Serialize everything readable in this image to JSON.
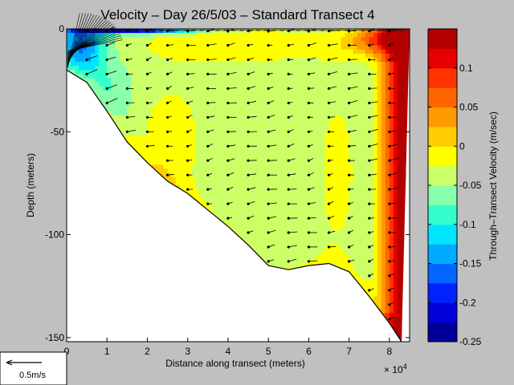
{
  "chart_data": {
    "type": "heatmap",
    "title": "Velocity – Day 26/5/03 – Standard Transect 4",
    "xlabel": "Distance along transect (meters)",
    "x_exponent_label": "× 10",
    "x_exponent_power": "4",
    "ylabel": "Depth (meters)",
    "colorbar_label": "Through–Transect Velocity (m/sec)",
    "xlim": [
      0,
      8.5
    ],
    "ylim": [
      -152,
      0
    ],
    "x_ticks": [
      0,
      1,
      2,
      3,
      4,
      5,
      6,
      7,
      8
    ],
    "x_tick_labels": [
      "0",
      "1",
      "2",
      "3",
      "4",
      "5",
      "6",
      "7",
      "8"
    ],
    "y_ticks": [
      0,
      -50,
      -100,
      -150
    ],
    "y_tick_labels": [
      "0",
      "-50",
      "-100",
      "-150"
    ],
    "colorbar_range": [
      -0.25,
      0.15
    ],
    "colorbar_ticks": [
      0.1,
      0.05,
      0,
      -0.05,
      -0.1,
      -0.15,
      -0.2,
      -0.25
    ],
    "colorbar_tick_labels": [
      "0.1",
      "0.05",
      "0",
      "-0.05",
      "-0.1",
      "-0.15",
      "-0.2",
      "-0.25"
    ],
    "colorbar_colors": [
      "#000099",
      "#0000d9",
      "#0022ff",
      "#0066ff",
      "#00aaff",
      "#00e5ff",
      "#33ffcc",
      "#88ffaa",
      "#ccff66",
      "#ffff00",
      "#ffcc00",
      "#ff9900",
      "#ff6600",
      "#ff3300",
      "#e60000",
      "#b30000"
    ],
    "bottom_profile": [
      [
        0,
        -20
      ],
      [
        0.5,
        -26
      ],
      [
        1,
        -40
      ],
      [
        1.5,
        -55
      ],
      [
        2,
        -65
      ],
      [
        2.5,
        -74
      ],
      [
        3,
        -80
      ],
      [
        3.5,
        -88
      ],
      [
        4,
        -96
      ],
      [
        4.5,
        -105
      ],
      [
        5,
        -115
      ],
      [
        5.5,
        -117
      ],
      [
        6,
        -115
      ],
      [
        6.5,
        -114
      ],
      [
        7,
        -118
      ],
      [
        7.5,
        -130
      ],
      [
        8,
        -143
      ],
      [
        8.3,
        -152
      ]
    ],
    "scale_arrow_label": "0.5m/s"
  }
}
